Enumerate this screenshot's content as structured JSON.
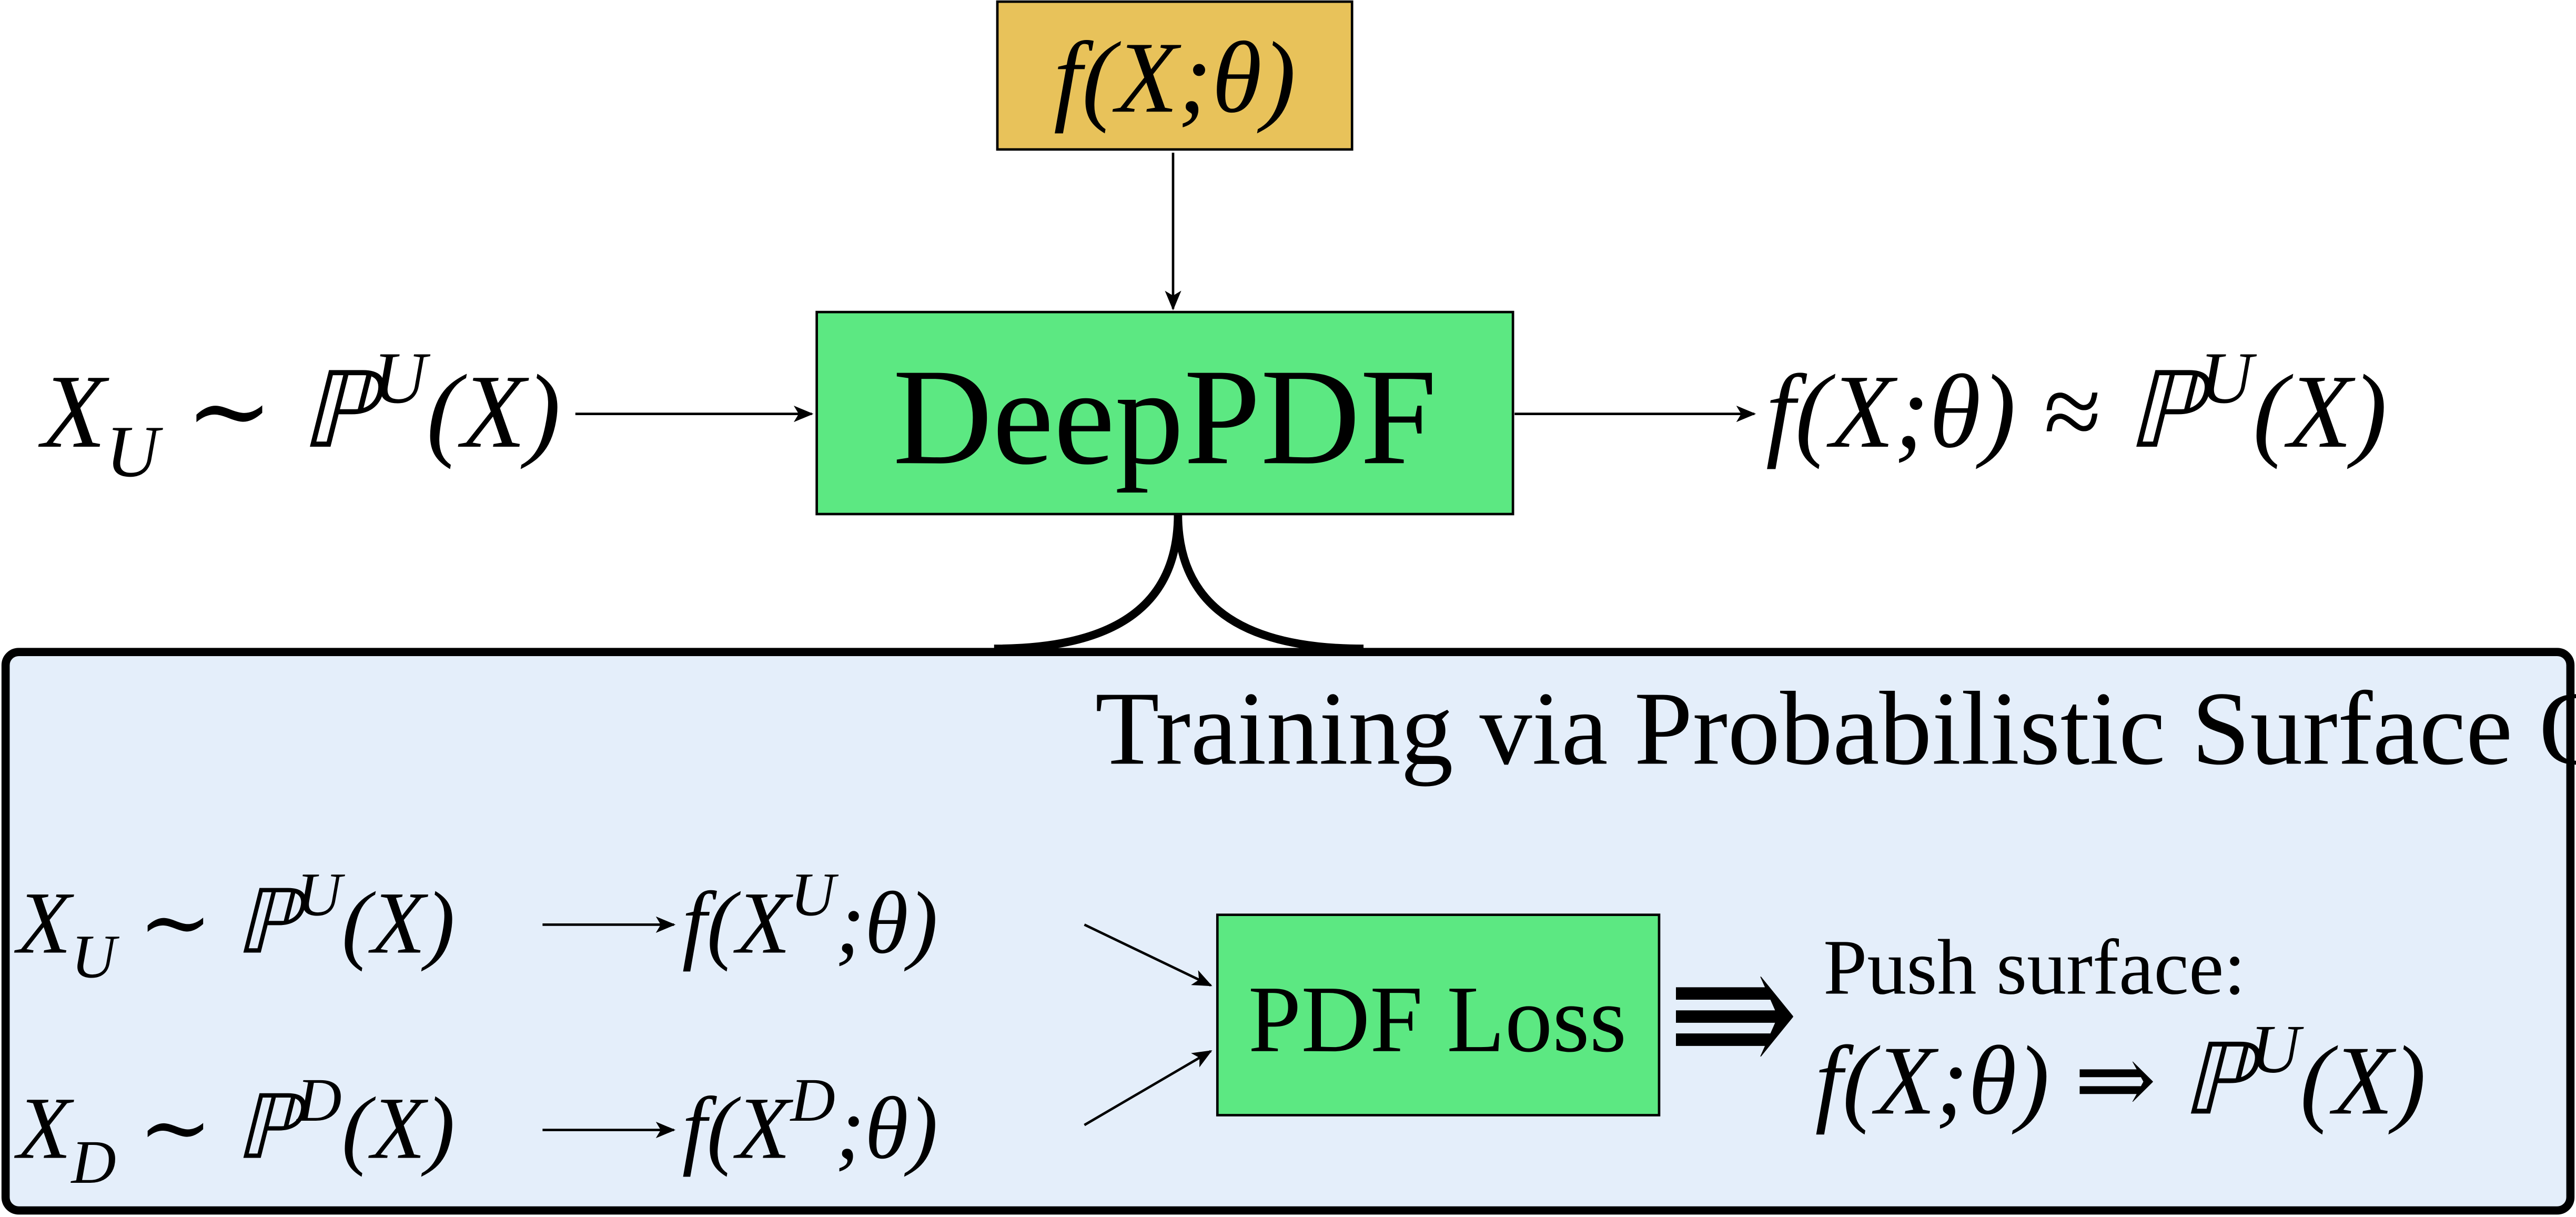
{
  "model_box": [
    {
      "t": "f(X;θ)"
    }
  ],
  "deeppdf_box": "DeepPDF",
  "input": [
    {
      "t": "X"
    },
    {
      "sub": "U"
    },
    {
      "t": " ∼ ℙ"
    },
    {
      "sup": "U"
    },
    {
      "t": "(X)"
    }
  ],
  "output": [
    {
      "t": "f(X;θ) ≈ ℙ"
    },
    {
      "sup": "U"
    },
    {
      "t": "(X)"
    }
  ],
  "training": {
    "title": "Training via Probabilistic Surface Optimization",
    "rows": [
      {
        "sample": [
          {
            "t": "X"
          },
          {
            "sub": "U"
          },
          {
            "t": " ∼ ℙ"
          },
          {
            "sup": "U"
          },
          {
            "t": "(X)"
          }
        ],
        "output": [
          {
            "t": "f(X"
          },
          {
            "sup": "U"
          },
          {
            "t": ";θ)"
          }
        ]
      },
      {
        "sample": [
          {
            "t": "X"
          },
          {
            "sub": "D"
          },
          {
            "t": " ∼ ℙ"
          },
          {
            "sup": "D"
          },
          {
            "t": "(X)"
          }
        ],
        "output": [
          {
            "t": "f(X"
          },
          {
            "sup": "D"
          },
          {
            "t": ";θ)"
          }
        ]
      }
    ],
    "loss_box": "PDF Loss",
    "implies": "⇛",
    "push_label": "Push surface:",
    "push_formula": [
      {
        "t": "f(X;θ) ⇒ ℙ"
      },
      {
        "sup": "U"
      },
      {
        "t": "(X)"
      }
    ]
  }
}
